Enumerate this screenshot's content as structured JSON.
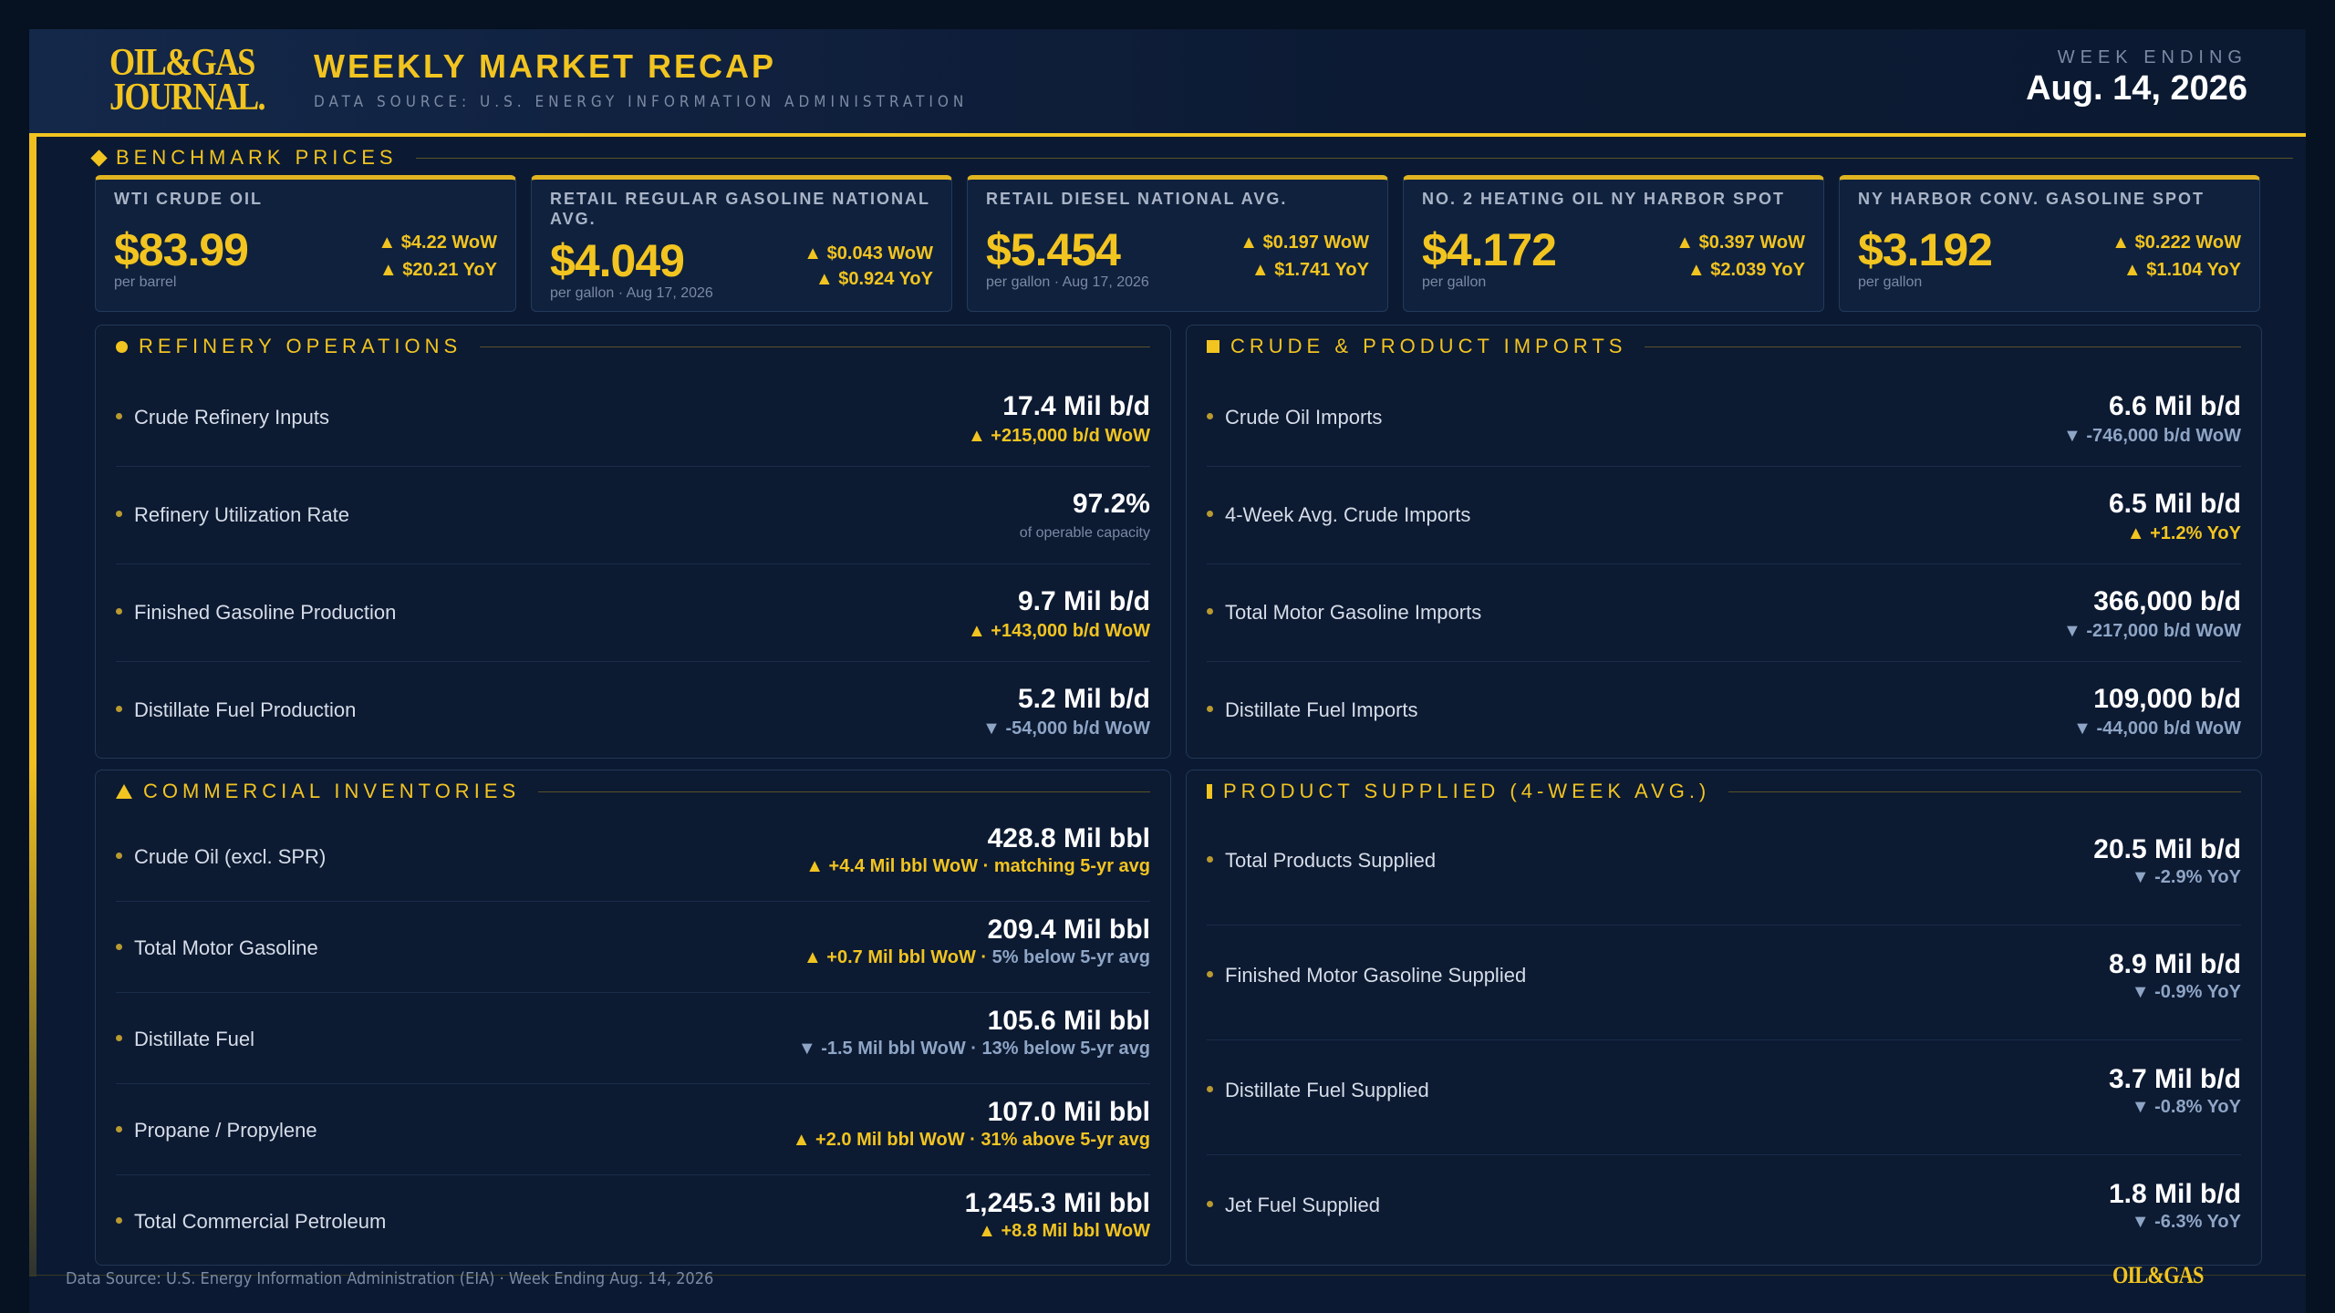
{
  "header": {
    "logo_line1": "OIL&GAS",
    "logo_line2": "JOURNAL.",
    "title": "WEEKLY MARKET RECAP",
    "subtitle": "DATA SOURCE: U.S. ENERGY INFORMATION ADMINISTRATION",
    "week_label": "WEEK ENDING",
    "week_date": "Aug. 14, 2026"
  },
  "benchmark": {
    "heading": "BENCHMARK PRICES",
    "cards": [
      {
        "label": "WTI CRUDE OIL",
        "price": "$83.99",
        "unit": "per barrel",
        "wow": "▲ $4.22 WoW",
        "yoy": "▲ $20.21 YoY"
      },
      {
        "label": "RETAIL REGULAR GASOLINE NATIONAL AVG.",
        "price": "$4.049",
        "unit": "per gallon · Aug 17, 2026",
        "wow": "▲ $0.043 WoW",
        "yoy": "▲ $0.924 YoY"
      },
      {
        "label": "RETAIL DIESEL NATIONAL AVG.",
        "price": "$5.454",
        "unit": "per gallon · Aug 17, 2026",
        "wow": "▲ $0.197 WoW",
        "yoy": "▲ $1.741 YoY"
      },
      {
        "label": "NO. 2 HEATING OIL NY HARBOR SPOT",
        "price": "$4.172",
        "unit": "per gallon",
        "wow": "▲ $0.397 WoW",
        "yoy": "▲ $2.039 YoY"
      },
      {
        "label": "NY HARBOR CONV. GASOLINE SPOT",
        "price": "$3.192",
        "unit": "per gallon",
        "wow": "▲ $0.222 WoW",
        "yoy": "▲ $1.104 YoY"
      }
    ]
  },
  "refinery": {
    "heading": "REFINERY OPERATIONS",
    "rows": [
      {
        "name": "Crude Refinery Inputs",
        "value": "17.4 Mil b/d",
        "change": "▲ +215,000 b/d WoW"
      },
      {
        "name": "Refinery Utilization Rate",
        "value": "97.2%",
        "change": "of operable capacity"
      },
      {
        "name": "Finished Gasoline Production",
        "value": "9.7 Mil b/d",
        "change": "▲ +143,000 b/d WoW"
      },
      {
        "name": "Distillate Fuel Production",
        "value": "5.2 Mil b/d",
        "change": "▼ -54,000 b/d WoW"
      }
    ]
  },
  "imports": {
    "heading": "CRUDE & PRODUCT IMPORTS",
    "rows": [
      {
        "name": "Crude Oil Imports",
        "value": "6.6 Mil b/d",
        "change": "▼ -746,000 b/d WoW"
      },
      {
        "name": "4-Week Avg. Crude Imports",
        "value": "6.5 Mil b/d",
        "change": "▲ +1.2% YoY"
      },
      {
        "name": "Total Motor Gasoline Imports",
        "value": "366,000 b/d",
        "change": "▼ -217,000 b/d WoW"
      },
      {
        "name": "Distillate Fuel Imports",
        "value": "109,000 b/d",
        "change": "▼ -44,000 b/d WoW"
      }
    ]
  },
  "inventories": {
    "heading": "COMMERCIAL INVENTORIES",
    "rows": [
      {
        "name": "Crude Oil (excl. SPR)",
        "value": "428.8 Mil bbl",
        "change_a": "▲ +4.4 Mil bbl WoW · matching 5-yr avg",
        "change_b": ""
      },
      {
        "name": "Total Motor Gasoline",
        "value": "209.4 Mil bbl",
        "change_a": "▲ +0.7 Mil bbl WoW · ",
        "change_b": "5% below 5-yr avg"
      },
      {
        "name": "Distillate Fuel",
        "value": "105.6 Mil bbl",
        "change_a": "",
        "change_b": "▼ -1.5 Mil bbl WoW · 13% below 5-yr avg"
      },
      {
        "name": "Propane / Propylene",
        "value": "107.0 Mil bbl",
        "change_a": "▲ +2.0 Mil bbl WoW · 31% above 5-yr avg",
        "change_b": ""
      },
      {
        "name": "Total Commercial Petroleum",
        "value": "1,245.3 Mil bbl",
        "change_a": "▲ +8.8 Mil bbl WoW",
        "change_b": ""
      }
    ]
  },
  "supplied": {
    "heading": "PRODUCT SUPPLIED (4-WEEK AVG.)",
    "rows": [
      {
        "name": "Total Products Supplied",
        "value": "20.5 Mil b/d",
        "change": "▼ -2.9% YoY"
      },
      {
        "name": "Finished Motor Gasoline Supplied",
        "value": "8.9 Mil b/d",
        "change": "▼ -0.9% YoY"
      },
      {
        "name": "Distillate Fuel Supplied",
        "value": "3.7 Mil b/d",
        "change": "▼ -0.8% YoY"
      },
      {
        "name": "Jet Fuel Supplied",
        "value": "1.8 Mil b/d",
        "change": "▼ -6.3% YoY"
      }
    ]
  },
  "footer": {
    "text": "Data Source: U.S. Energy Information Administration (EIA) · Week Ending Aug. 14, 2026",
    "logo": "OIL&GAS"
  },
  "colors": {
    "accent": "#f2c420",
    "background": "#0b1a32",
    "down": "#8ea5c5"
  }
}
